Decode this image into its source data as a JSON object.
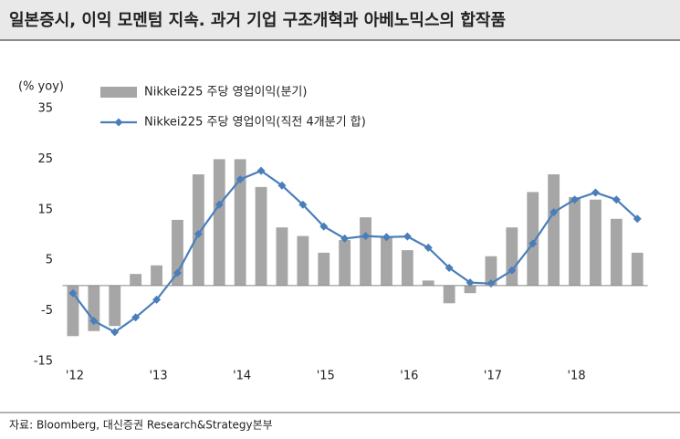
{
  "header": {
    "title": "일본증시, 이익 모멘텀 지속. 과거 기업 구조개혁과 아베노믹스의 합작품"
  },
  "chart_data": {
    "type": "bar-line",
    "y_label": "(% yoy)",
    "categories": [
      "'12",
      null,
      null,
      null,
      "'13",
      null,
      null,
      null,
      "'14",
      null,
      null,
      null,
      "'15",
      null,
      null,
      null,
      "'16",
      null,
      null,
      null,
      "'17",
      null,
      null,
      null,
      "'18",
      null,
      null,
      null
    ],
    "series": [
      {
        "name": "Nikkei225 주당 영업이익(분기)",
        "type": "bar",
        "color": "#a6a6a6",
        "values": [
          -10,
          -9,
          -8,
          2.3,
          4,
          13,
          22,
          25,
          25,
          19.5,
          11.5,
          9.8,
          6.5,
          9,
          13.5,
          9.5,
          7,
          1,
          -3.5,
          -1.5,
          5.8,
          11.5,
          18.5,
          22,
          17.5,
          17,
          13.2,
          6.5
        ]
      },
      {
        "name": "Nikkei225 주당 영업이익(직전 4개분기 합)",
        "type": "line",
        "color": "#4a7ebb",
        "values": [
          -1.5,
          -7,
          -9.2,
          -6.3,
          -2.8,
          2.5,
          10.2,
          16,
          21,
          22.7,
          19.8,
          16,
          11.7,
          9.3,
          9.8,
          9.6,
          9.7,
          7.5,
          3.5,
          0.6,
          0.4,
          3,
          8.3,
          14.5,
          17,
          18.4,
          17,
          13.2
        ]
      }
    ],
    "ylim": [
      -15,
      35
    ],
    "yticks": [
      35,
      25,
      15,
      5,
      -5,
      -15
    ]
  },
  "footer": {
    "source": "자료: Bloomberg, 대신증권 Research&Strategy본부"
  }
}
